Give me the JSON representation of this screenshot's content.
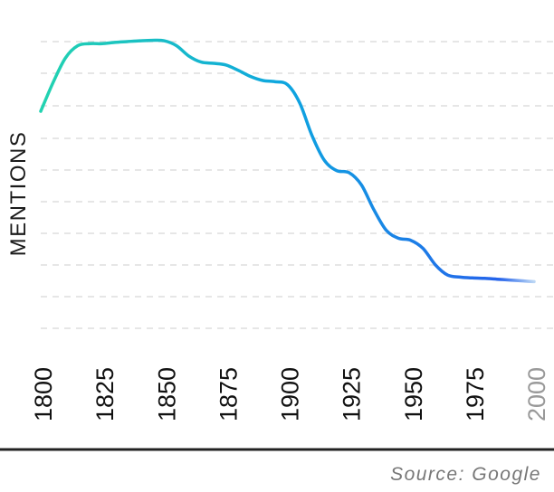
{
  "chart_data": {
    "type": "line",
    "ylabel": "MENTIONS",
    "xlabel": "",
    "title": "",
    "source": "Source: Google",
    "x_tick_labels": [
      "1800",
      "1825",
      "1850",
      "1875",
      "1900",
      "1925",
      "1950",
      "1975",
      "2000"
    ],
    "x_ticks": [
      1800,
      1825,
      1850,
      1875,
      1900,
      1925,
      1950,
      1975,
      2000
    ],
    "xlim": [
      1800,
      2000
    ],
    "y_tick_labels": [],
    "grid": true,
    "legend": "none",
    "series": [
      {
        "x": [
          1800,
          1805,
          1810,
          1815,
          1820,
          1825,
          1830,
          1835,
          1840,
          1845,
          1850,
          1855,
          1860,
          1865,
          1870,
          1875,
          1880,
          1885,
          1890,
          1895,
          1900,
          1905,
          1910,
          1915,
          1920,
          1925,
          1930,
          1935,
          1940,
          1945,
          1950,
          1955,
          1960,
          1965,
          1970,
          1975,
          1980,
          1985,
          1990,
          1995,
          2000
        ],
        "y": [
          6.9,
          7.6,
          8.2,
          8.5,
          8.55,
          8.55,
          8.58,
          8.6,
          8.62,
          8.63,
          8.62,
          8.5,
          8.25,
          8.1,
          8.07,
          8.03,
          7.9,
          7.75,
          7.65,
          7.62,
          7.55,
          7.1,
          6.3,
          5.7,
          5.45,
          5.4,
          5.1,
          4.5,
          4.0,
          3.8,
          3.75,
          3.55,
          3.15,
          2.9,
          2.85,
          2.83,
          2.82,
          2.8,
          2.78,
          2.76,
          2.74
        ],
        "projected_from": 1985
      }
    ],
    "colors": {
      "line_start": "#22d3b0",
      "line_mid": "#0ea5e0",
      "line_end": "#2563eb",
      "projection_end": "#bcd7f5",
      "gridline": "#dddddd",
      "baseline": "#222222",
      "future_tick": "#999999"
    },
    "projected_ticks": [
      "2000"
    ]
  }
}
